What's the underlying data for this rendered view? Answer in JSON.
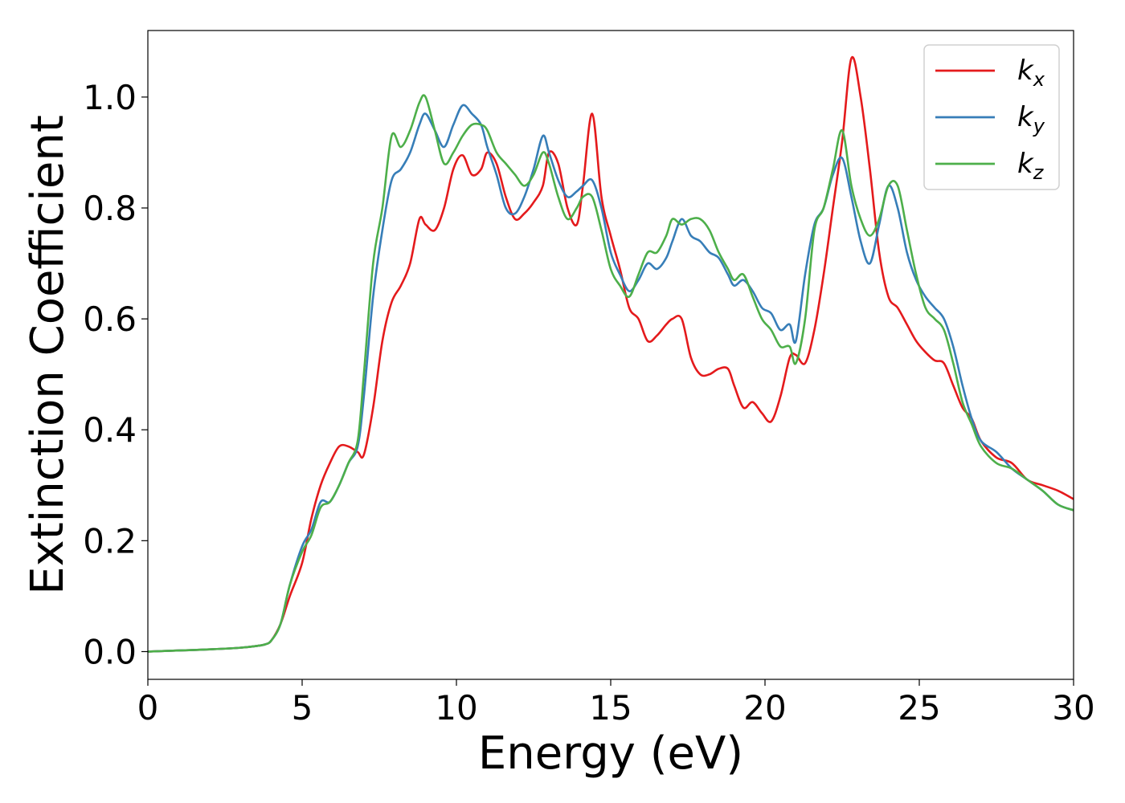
{
  "chart_data": {
    "type": "line",
    "xlabel": "Energy (eV)",
    "ylabel": "Extinction Coefficient",
    "xlim": [
      0,
      30
    ],
    "ylim": [
      -0.05,
      1.12
    ],
    "xticks": [
      0,
      5,
      10,
      15,
      20,
      25,
      30
    ],
    "yticks": [
      0.0,
      0.2,
      0.4,
      0.6,
      0.8,
      1.0
    ],
    "xtick_labels": [
      "0",
      "5",
      "10",
      "15",
      "20",
      "25",
      "30"
    ],
    "ytick_labels": [
      "0.0",
      "0.2",
      "0.4",
      "0.6",
      "0.8",
      "1.0"
    ],
    "grid": false,
    "legend_position": "top-right",
    "series": [
      {
        "name": "k_x",
        "label_base": "k",
        "label_sub": "x",
        "color": "#e41a1c",
        "x": [
          0,
          1,
          2,
          3,
          3.5,
          3.8,
          4.0,
          4.3,
          4.6,
          5.0,
          5.3,
          5.6,
          5.9,
          6.2,
          6.5,
          6.8,
          7.0,
          7.3,
          7.6,
          7.9,
          8.2,
          8.5,
          8.8,
          9.0,
          9.3,
          9.6,
          9.9,
          10.2,
          10.5,
          10.8,
          11.0,
          11.3,
          11.6,
          11.9,
          12.2,
          12.5,
          12.8,
          13.0,
          13.3,
          13.6,
          13.9,
          14.1,
          14.4,
          14.7,
          15.0,
          15.3,
          15.6,
          15.9,
          16.2,
          16.5,
          16.8,
          17.0,
          17.3,
          17.6,
          17.9,
          18.2,
          18.5,
          18.8,
          19.0,
          19.3,
          19.6,
          19.9,
          20.2,
          20.5,
          20.8,
          21.0,
          21.3,
          21.6,
          21.9,
          22.2,
          22.5,
          22.8,
          23.1,
          23.4,
          23.7,
          24.0,
          24.3,
          24.6,
          24.9,
          25.2,
          25.5,
          25.8,
          26.1,
          26.4,
          26.7,
          27.0,
          27.5,
          28.0,
          28.5,
          29.0,
          29.5,
          30.0
        ],
        "y": [
          0.0,
          0.002,
          0.004,
          0.007,
          0.01,
          0.013,
          0.02,
          0.05,
          0.1,
          0.16,
          0.24,
          0.3,
          0.34,
          0.37,
          0.37,
          0.36,
          0.355,
          0.44,
          0.56,
          0.63,
          0.66,
          0.7,
          0.78,
          0.77,
          0.76,
          0.8,
          0.87,
          0.895,
          0.86,
          0.87,
          0.9,
          0.88,
          0.82,
          0.78,
          0.79,
          0.81,
          0.84,
          0.9,
          0.88,
          0.8,
          0.77,
          0.84,
          0.97,
          0.82,
          0.75,
          0.69,
          0.62,
          0.6,
          0.56,
          0.57,
          0.59,
          0.6,
          0.6,
          0.53,
          0.5,
          0.5,
          0.51,
          0.51,
          0.48,
          0.44,
          0.45,
          0.43,
          0.415,
          0.46,
          0.53,
          0.535,
          0.52,
          0.58,
          0.68,
          0.8,
          0.92,
          1.07,
          1.0,
          0.87,
          0.72,
          0.64,
          0.62,
          0.59,
          0.56,
          0.54,
          0.525,
          0.52,
          0.48,
          0.44,
          0.42,
          0.38,
          0.35,
          0.34,
          0.31,
          0.3,
          0.29,
          0.275
        ]
      },
      {
        "name": "k_y",
        "label_base": "k",
        "label_sub": "y",
        "color": "#377eb8",
        "x": [
          0,
          1,
          2,
          3,
          3.5,
          3.8,
          4.0,
          4.3,
          4.6,
          5.0,
          5.3,
          5.6,
          5.9,
          6.2,
          6.5,
          6.8,
          7.0,
          7.3,
          7.6,
          7.9,
          8.2,
          8.5,
          8.8,
          9.0,
          9.3,
          9.6,
          9.9,
          10.2,
          10.5,
          10.8,
          11.0,
          11.3,
          11.6,
          11.9,
          12.2,
          12.5,
          12.8,
          13.0,
          13.3,
          13.6,
          13.9,
          14.1,
          14.4,
          14.7,
          15.0,
          15.3,
          15.6,
          15.9,
          16.2,
          16.5,
          16.8,
          17.0,
          17.3,
          17.6,
          17.9,
          18.2,
          18.5,
          18.8,
          19.0,
          19.3,
          19.6,
          19.9,
          20.2,
          20.5,
          20.8,
          21.0,
          21.3,
          21.6,
          21.9,
          22.2,
          22.5,
          22.8,
          23.1,
          23.4,
          23.7,
          24.0,
          24.3,
          24.6,
          24.9,
          25.2,
          25.5,
          25.8,
          26.1,
          26.4,
          26.7,
          27.0,
          27.5,
          28.0,
          28.5,
          29.0,
          29.5,
          30.0
        ],
        "y": [
          0.0,
          0.002,
          0.004,
          0.007,
          0.01,
          0.013,
          0.02,
          0.05,
          0.12,
          0.19,
          0.22,
          0.27,
          0.27,
          0.3,
          0.34,
          0.37,
          0.46,
          0.64,
          0.76,
          0.85,
          0.87,
          0.9,
          0.95,
          0.97,
          0.94,
          0.91,
          0.95,
          0.985,
          0.97,
          0.95,
          0.91,
          0.86,
          0.8,
          0.79,
          0.82,
          0.87,
          0.93,
          0.9,
          0.85,
          0.82,
          0.83,
          0.84,
          0.85,
          0.8,
          0.72,
          0.68,
          0.65,
          0.67,
          0.7,
          0.69,
          0.71,
          0.74,
          0.78,
          0.75,
          0.74,
          0.72,
          0.71,
          0.68,
          0.66,
          0.67,
          0.65,
          0.62,
          0.61,
          0.58,
          0.59,
          0.56,
          0.68,
          0.77,
          0.8,
          0.86,
          0.89,
          0.82,
          0.74,
          0.7,
          0.77,
          0.84,
          0.8,
          0.72,
          0.67,
          0.64,
          0.62,
          0.6,
          0.55,
          0.48,
          0.42,
          0.38,
          0.36,
          0.33,
          0.31,
          0.29,
          0.265,
          0.255
        ]
      },
      {
        "name": "k_z",
        "label_base": "k",
        "label_sub": "z",
        "color": "#4daf4a",
        "x": [
          0,
          1,
          2,
          3,
          3.5,
          3.8,
          4.0,
          4.3,
          4.6,
          5.0,
          5.3,
          5.6,
          5.9,
          6.2,
          6.5,
          6.8,
          7.0,
          7.3,
          7.6,
          7.9,
          8.2,
          8.5,
          8.8,
          9.0,
          9.3,
          9.6,
          9.9,
          10.2,
          10.5,
          10.8,
          11.0,
          11.3,
          11.6,
          11.9,
          12.2,
          12.5,
          12.8,
          13.0,
          13.3,
          13.6,
          13.9,
          14.1,
          14.4,
          14.7,
          15.0,
          15.3,
          15.6,
          15.9,
          16.2,
          16.5,
          16.8,
          17.0,
          17.3,
          17.6,
          17.9,
          18.2,
          18.5,
          18.8,
          19.0,
          19.3,
          19.6,
          19.9,
          20.2,
          20.5,
          20.8,
          21.0,
          21.3,
          21.6,
          21.9,
          22.2,
          22.5,
          22.8,
          23.1,
          23.4,
          23.7,
          24.0,
          24.3,
          24.6,
          24.9,
          25.2,
          25.5,
          25.8,
          26.1,
          26.4,
          26.7,
          27.0,
          27.5,
          28.0,
          28.5,
          29.0,
          29.5,
          30.0
        ],
        "y": [
          0.0,
          0.002,
          0.004,
          0.007,
          0.01,
          0.013,
          0.02,
          0.05,
          0.12,
          0.18,
          0.21,
          0.26,
          0.27,
          0.3,
          0.34,
          0.38,
          0.5,
          0.7,
          0.8,
          0.93,
          0.91,
          0.94,
          0.99,
          1.0,
          0.94,
          0.88,
          0.9,
          0.93,
          0.95,
          0.95,
          0.94,
          0.9,
          0.88,
          0.86,
          0.84,
          0.86,
          0.9,
          0.88,
          0.82,
          0.78,
          0.8,
          0.82,
          0.82,
          0.76,
          0.69,
          0.66,
          0.64,
          0.68,
          0.72,
          0.72,
          0.75,
          0.78,
          0.77,
          0.78,
          0.78,
          0.76,
          0.72,
          0.69,
          0.67,
          0.68,
          0.64,
          0.6,
          0.58,
          0.55,
          0.55,
          0.52,
          0.6,
          0.76,
          0.8,
          0.87,
          0.94,
          0.84,
          0.78,
          0.75,
          0.78,
          0.84,
          0.84,
          0.76,
          0.68,
          0.62,
          0.6,
          0.58,
          0.52,
          0.45,
          0.41,
          0.37,
          0.34,
          0.33,
          0.31,
          0.29,
          0.265,
          0.255
        ]
      }
    ]
  }
}
